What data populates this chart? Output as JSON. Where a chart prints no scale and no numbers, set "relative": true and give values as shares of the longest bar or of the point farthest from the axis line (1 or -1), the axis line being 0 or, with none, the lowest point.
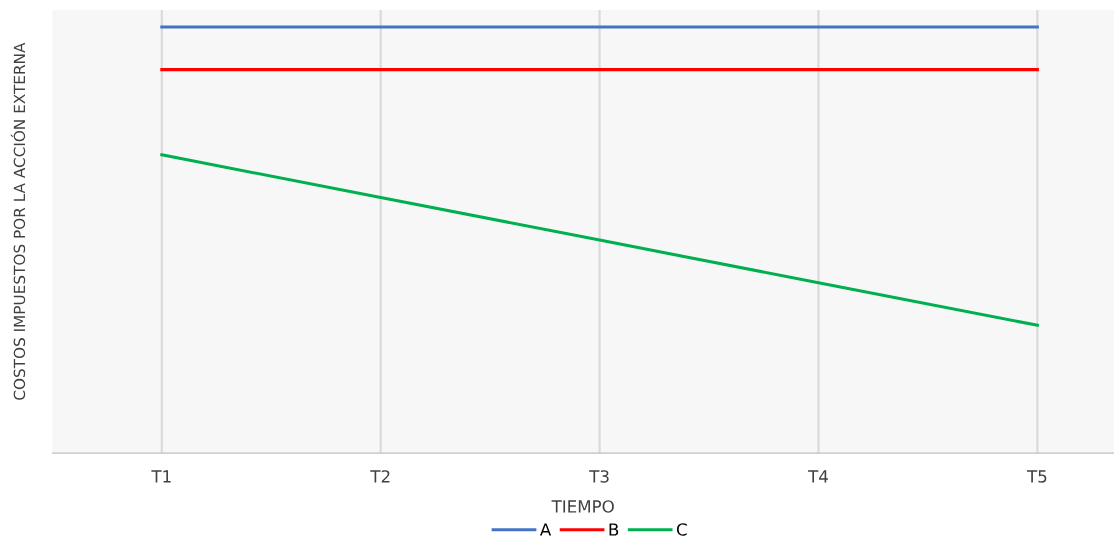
{
  "chart_data": {
    "type": "line",
    "relative": true,
    "xlabel": "TIEMPO",
    "ylabel": "COSTOS IMPUESTOS POR LA ACCIÓN EXTERNA",
    "categories": [
      "T1",
      "T2",
      "T3",
      "T4",
      "T5"
    ],
    "series": [
      {
        "name": "A",
        "color": "#4472c4",
        "values": [
          1,
          1,
          1,
          1,
          1
        ]
      },
      {
        "name": "B",
        "color": "#ff0000",
        "values": [
          0.9,
          0.9,
          0.9,
          0.9,
          0.9
        ]
      },
      {
        "name": "C",
        "color": "#00b050",
        "values": [
          0.7,
          0.6,
          0.5,
          0.4,
          0.3
        ]
      }
    ],
    "grid": "x",
    "legend": "bottom",
    "marker": "none",
    "line_style": "solid"
  }
}
